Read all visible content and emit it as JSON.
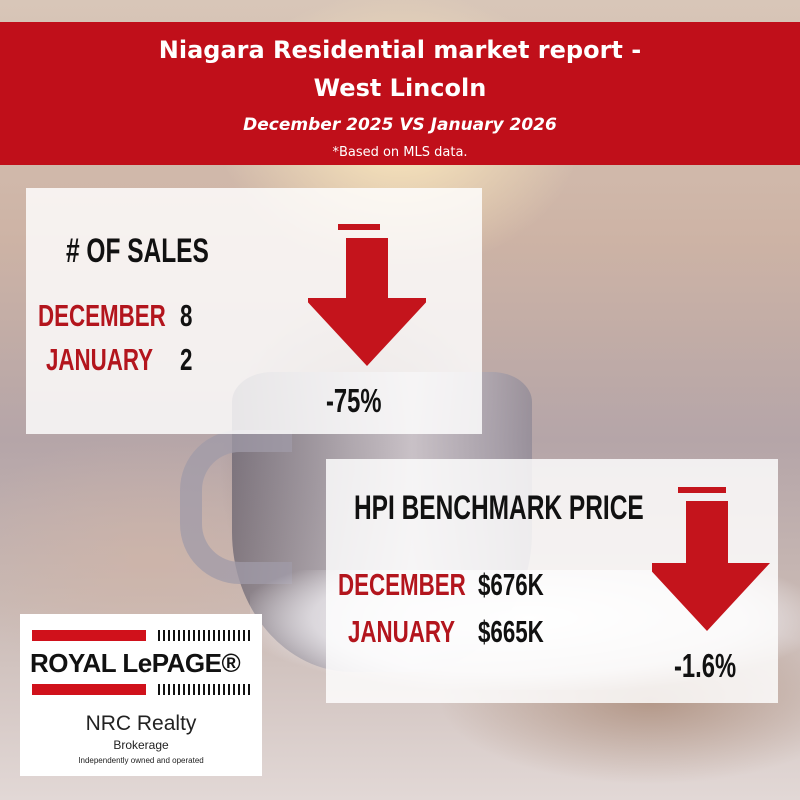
{
  "banner": {
    "title_line1": "Niagara Residential market report -",
    "title_line2": "West Lincoln",
    "subtitle": "December 2025 VS January 2026",
    "note": "*Based on MLS data."
  },
  "sales": {
    "heading": "# OF SALES",
    "rows": [
      {
        "month": "DECEMBER",
        "value": "8"
      },
      {
        "month": "JANUARY",
        "value": "2"
      }
    ],
    "change": "-75%",
    "direction": "down-arrow-icon"
  },
  "hpi": {
    "heading": "HPI BENCHMARK PRICE",
    "rows": [
      {
        "month": "DECEMBER",
        "value": "$676K"
      },
      {
        "month": "JANUARY",
        "value": "$665K"
      }
    ],
    "change": "-1.6%",
    "direction": "down-arrow-icon"
  },
  "logo": {
    "brand": "ROYAL LePAGE®",
    "office": "NRC Realty",
    "brokerage": "Brokerage",
    "tagline": "Independently owned and operated"
  },
  "colors": {
    "brand_red": "#c00f1a",
    "arrow_red": "#c4141c",
    "month_red": "#b3151d"
  }
}
